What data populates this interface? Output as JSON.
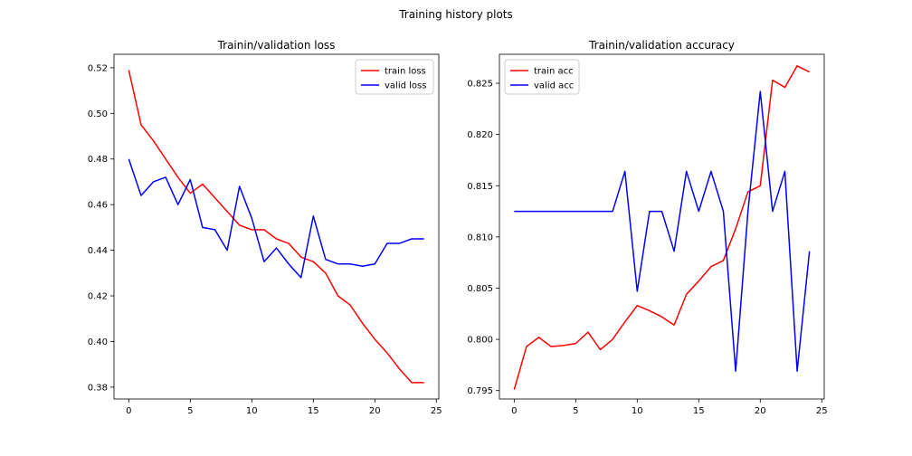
{
  "suptitle": "Training history plots",
  "colors": {
    "train": "#ff0000",
    "valid": "#0000ff"
  },
  "chart_data": [
    {
      "type": "line",
      "title": "Trainin/validation loss",
      "xlabel": "",
      "ylabel": "",
      "xlim": [
        -1.2,
        25.2
      ],
      "ylim": [
        0.3748,
        0.5259
      ],
      "xticks": [
        0,
        5,
        10,
        15,
        20,
        25
      ],
      "xtick_labels": [
        "0",
        "5",
        "10",
        "15",
        "20",
        "25"
      ],
      "yticks": [
        0.38,
        0.4,
        0.42,
        0.44,
        0.46,
        0.48,
        0.5,
        0.52
      ],
      "ytick_labels": [
        "0.38",
        "0.40",
        "0.42",
        "0.44",
        "0.46",
        "0.48",
        "0.50",
        "0.52"
      ],
      "grid": false,
      "legend_position": "top-right",
      "x": [
        0,
        1,
        2,
        3,
        4,
        5,
        6,
        7,
        8,
        9,
        10,
        11,
        12,
        13,
        14,
        15,
        16,
        17,
        18,
        19,
        20,
        21,
        22,
        23,
        24
      ],
      "series": [
        {
          "name": "train loss",
          "color": "#ff0000",
          "values": [
            0.519,
            0.495,
            0.488,
            0.48,
            0.472,
            0.465,
            0.469,
            0.463,
            0.457,
            0.451,
            0.449,
            0.449,
            0.445,
            0.443,
            0.437,
            0.435,
            0.43,
            0.42,
            0.416,
            0.408,
            0.401,
            0.395,
            0.388,
            0.382,
            0.382
          ]
        },
        {
          "name": "valid loss",
          "color": "#0000ff",
          "values": [
            0.48,
            0.464,
            0.47,
            0.472,
            0.46,
            0.471,
            0.45,
            0.449,
            0.44,
            0.468,
            0.454,
            0.435,
            0.441,
            0.434,
            0.428,
            0.455,
            0.436,
            0.434,
            0.434,
            0.433,
            0.434,
            0.443,
            0.443,
            0.445,
            0.445
          ]
        }
      ]
    },
    {
      "type": "line",
      "title": "Trainin/validation accuracy",
      "xlabel": "",
      "ylabel": "",
      "xlim": [
        -1.2,
        25.2
      ],
      "ylim": [
        0.79418,
        0.82783
      ],
      "xticks": [
        0,
        5,
        10,
        15,
        20,
        25
      ],
      "xtick_labels": [
        "0",
        "5",
        "10",
        "15",
        "20",
        "25"
      ],
      "yticks": [
        0.795,
        0.8,
        0.805,
        0.81,
        0.815,
        0.82,
        0.825
      ],
      "ytick_labels": [
        "0.795",
        "0.800",
        "0.805",
        "0.810",
        "0.815",
        "0.820",
        "0.825"
      ],
      "grid": false,
      "legend_position": "top-left",
      "x": [
        0,
        1,
        2,
        3,
        4,
        5,
        6,
        7,
        8,
        9,
        10,
        11,
        12,
        13,
        14,
        15,
        16,
        17,
        18,
        19,
        20,
        21,
        22,
        23,
        24
      ],
      "series": [
        {
          "name": "train acc",
          "color": "#ff0000",
          "values": [
            0.7951,
            0.7993,
            0.8002,
            0.7993,
            0.7994,
            0.7996,
            0.8007,
            0.799,
            0.8,
            0.8017,
            0.8033,
            0.8028,
            0.8022,
            0.8014,
            0.8044,
            0.8057,
            0.8071,
            0.8077,
            0.8108,
            0.8144,
            0.815,
            0.8253,
            0.8246,
            0.8267,
            0.8261
          ]
        },
        {
          "name": "valid acc",
          "color": "#0000ff",
          "values": [
            0.8125,
            0.8125,
            0.8125,
            0.8125,
            0.8125,
            0.8125,
            0.8125,
            0.8125,
            0.8125,
            0.8164,
            0.8047,
            0.8125,
            0.8125,
            0.8086,
            0.8164,
            0.8125,
            0.8164,
            0.8125,
            0.7969,
            0.8125,
            0.8242,
            0.8125,
            0.8164,
            0.7969,
            0.8086
          ]
        }
      ]
    }
  ]
}
